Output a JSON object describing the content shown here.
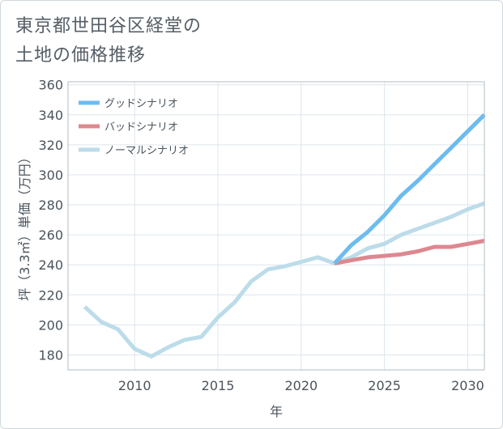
{
  "title": {
    "line1": "東京都世田谷区経堂の",
    "line2": "土地の価格推移"
  },
  "chart_data": {
    "type": "line",
    "title": "東京都世田谷区経堂の土地の価格推移",
    "xlabel": "年",
    "ylabel": "坪（3.3㎡）単価（万円）",
    "xlim": [
      2006,
      2031
    ],
    "ylim": [
      170,
      362
    ],
    "x_ticks": [
      2010,
      2015,
      2020,
      2025,
      2030
    ],
    "y_ticks": [
      180,
      200,
      220,
      240,
      260,
      280,
      300,
      320,
      340,
      360
    ],
    "grid": true,
    "legend_position": "top-left",
    "series": [
      {
        "name": "グッドシナリオ",
        "color": "#6cbcef",
        "x": [
          2022,
          2023,
          2024,
          2025,
          2026,
          2027,
          2028,
          2029,
          2030,
          2031
        ],
        "values": [
          241,
          253,
          262,
          273,
          286,
          296,
          307,
          318,
          329,
          340
        ]
      },
      {
        "name": "バッドシナリオ",
        "color": "#dd8890",
        "x": [
          2022,
          2023,
          2024,
          2025,
          2026,
          2027,
          2028,
          2029,
          2030,
          2031
        ],
        "values": [
          241,
          243,
          245,
          246,
          247,
          249,
          252,
          252,
          254,
          256
        ]
      },
      {
        "name": "ノーマルシナリオ",
        "color": "#bcdcea",
        "x": [
          2007,
          2008,
          2009,
          2010,
          2011,
          2012,
          2013,
          2014,
          2015,
          2016,
          2017,
          2018,
          2019,
          2020,
          2021,
          2022,
          2023,
          2024,
          2025,
          2026,
          2027,
          2028,
          2029,
          2030,
          2031
        ],
        "values": [
          212,
          202,
          197,
          184,
          179,
          185,
          190,
          192,
          205,
          215,
          229,
          237,
          239,
          242,
          245,
          241,
          245,
          251,
          254,
          260,
          264,
          268,
          272,
          277,
          281
        ]
      }
    ]
  }
}
